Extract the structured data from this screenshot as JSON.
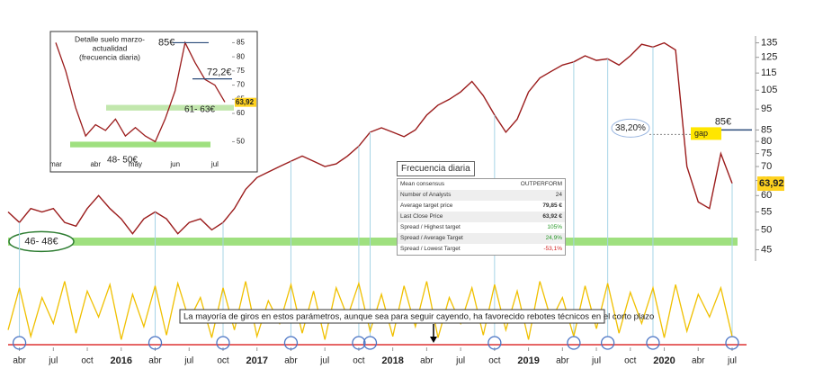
{
  "chart_data": [
    {
      "type": "line",
      "log_scale": true,
      "color": "#9b1c1c",
      "x": [
        "2015-03",
        "2015-04",
        "2015-05",
        "2015-06",
        "2015-07",
        "2015-08",
        "2015-09",
        "2015-10",
        "2015-11",
        "2015-12",
        "2016-01",
        "2016-02",
        "2016-03",
        "2016-04",
        "2016-05",
        "2016-06",
        "2016-07",
        "2016-08",
        "2016-09",
        "2016-10",
        "2016-11",
        "2016-12",
        "2017-01",
        "2017-02",
        "2017-03",
        "2017-04",
        "2017-05",
        "2017-06",
        "2017-07",
        "2017-08",
        "2017-09",
        "2017-10",
        "2017-11",
        "2017-12",
        "2018-01",
        "2018-02",
        "2018-03",
        "2018-04",
        "2018-05",
        "2018-06",
        "2018-07",
        "2018-08",
        "2018-09",
        "2018-10",
        "2018-11",
        "2018-12",
        "2019-01",
        "2019-02",
        "2019-03",
        "2019-04",
        "2019-05",
        "2019-06",
        "2019-07",
        "2019-08",
        "2019-09",
        "2019-10",
        "2019-11",
        "2019-12",
        "2020-01",
        "2020-02",
        "2020-03",
        "2020-04",
        "2020-05",
        "2020-06",
        "2020-07"
      ],
      "values": [
        55,
        52,
        56,
        55,
        56,
        52,
        51,
        56,
        60,
        56,
        53,
        49,
        53,
        55,
        53,
        49,
        52,
        53,
        50,
        52,
        56,
        62,
        66,
        68,
        70,
        72,
        74,
        72,
        70,
        71,
        74,
        78,
        84,
        86,
        84,
        82,
        85,
        92,
        97,
        100,
        104,
        110,
        102,
        92,
        84,
        90,
        104,
        112,
        116,
        120,
        122,
        126,
        123,
        124,
        120,
        126,
        134,
        132,
        135,
        130,
        70,
        58,
        56,
        75,
        64
      ],
      "xlim": [
        "2015-03",
        "2020-07"
      ],
      "xticks": [
        {
          "value": "2015-04",
          "label": "abr"
        },
        {
          "value": "2015-07",
          "label": "jul"
        },
        {
          "value": "2015-10",
          "label": "oct"
        },
        {
          "value": "2016-01",
          "label": "2016"
        },
        {
          "value": "2016-04",
          "label": "abr"
        },
        {
          "value": "2016-07",
          "label": "jul"
        },
        {
          "value": "2016-10",
          "label": "oct"
        },
        {
          "value": "2017-01",
          "label": "2017"
        },
        {
          "value": "2017-04",
          "label": "abr"
        },
        {
          "value": "2017-07",
          "label": "jul"
        },
        {
          "value": "2017-10",
          "label": "oct"
        },
        {
          "value": "2018-01",
          "label": "2018"
        },
        {
          "value": "2018-04",
          "label": "abr"
        },
        {
          "value": "2018-07",
          "label": "jul"
        },
        {
          "value": "2018-10",
          "label": "oct"
        },
        {
          "value": "2019-01",
          "label": "2019"
        },
        {
          "value": "2019-04",
          "label": "abr"
        },
        {
          "value": "2019-07",
          "label": "jul"
        },
        {
          "value": "2019-10",
          "label": "oct"
        },
        {
          "value": "2020-01",
          "label": "2020"
        },
        {
          "value": "2020-04",
          "label": "abr"
        },
        {
          "value": "2020-07",
          "label": "jul"
        }
      ],
      "ylim": [
        43,
        140
      ],
      "yticks": [
        45,
        50,
        55,
        60,
        65,
        70,
        75,
        80,
        85,
        95,
        105,
        115,
        125,
        135
      ],
      "bands": [
        {
          "from": 46,
          "to": 48,
          "label": "46- 48€",
          "color": "#9fe07f"
        }
      ],
      "levels": [
        {
          "value": 85,
          "label": "85€",
          "color": "#2b4b7a"
        }
      ],
      "notes": [
        "38,20%",
        "gap"
      ],
      "last_price": {
        "value": 63.92,
        "label": "63,92"
      }
    },
    {
      "type": "line",
      "color": "#f0c000",
      "ylim": [
        0,
        100
      ],
      "values": [
        20,
        85,
        10,
        70,
        30,
        95,
        15,
        80,
        40,
        90,
        5,
        75,
        25,
        88,
        12,
        92,
        35,
        70,
        8,
        85,
        20,
        95,
        10,
        65,
        30,
        90,
        15,
        80,
        5,
        85,
        40,
        92,
        18,
        75,
        10,
        88,
        25,
        95,
        8,
        70,
        30,
        85,
        12,
        90,
        20,
        80,
        5,
        95,
        35,
        70,
        10,
        88,
        22,
        92,
        15,
        78,
        30,
        85,
        8,
        90,
        18,
        75,
        40,
        85,
        10
      ],
      "markers": [
        "2015-04",
        "2016-04",
        "2016-10",
        "2017-04",
        "2017-10",
        "2017-11",
        "2018-10",
        "2019-05",
        "2019-08",
        "2019-12",
        "2020-07"
      ],
      "annotation": "La mayoría de giros en estos parámetros, aunque sea para seguir cayendo, ha favorecido rebotes técnicos en el corto plazo"
    },
    {
      "type": "line",
      "color": "#9b1c1c",
      "title": [
        "Detalle suelo marzo-",
        "actualidad",
        "(frecuencia diaria)"
      ],
      "categories": [
        "mar",
        null,
        null,
        null,
        "abr",
        null,
        null,
        null,
        "may",
        null,
        null,
        null,
        "jun",
        null,
        null,
        null,
        "jul",
        null
      ],
      "values": [
        85,
        75,
        62,
        52,
        56,
        54,
        58,
        52,
        55,
        52,
        50,
        58,
        68,
        85,
        78,
        72,
        70,
        64
      ],
      "ylim": [
        46,
        88
      ],
      "yticks": [
        50,
        60,
        65,
        70,
        75,
        80,
        85
      ],
      "bands": [
        {
          "from": 61,
          "to": 63,
          "label": "61- 63€",
          "color": "#8fd36a"
        },
        {
          "from": 48,
          "to": 50,
          "label": "48- 50€",
          "color": "#9fe07f"
        }
      ],
      "levels": [
        {
          "value": 85,
          "label": "85€",
          "color": "#2b4b7a"
        },
        {
          "value": 72.2,
          "label": "72,2€",
          "color": "#2b4b7a"
        }
      ],
      "last_price": {
        "value": 63.92,
        "label": "63,92"
      }
    }
  ],
  "table": {
    "title": "Frecuencia diaria",
    "rows": [
      [
        "Mean consensus",
        "OUTPERFORM"
      ],
      [
        "Number of Analysts",
        "24"
      ],
      [
        "Average target price",
        "79,85 €"
      ],
      [
        "Last Close Price",
        "63,92 €"
      ],
      [
        "Spread / Highest target",
        "105%"
      ],
      [
        "Spread / Average Target",
        "24,9%"
      ],
      [
        "Spread / Lowest Target",
        "-53,1%"
      ]
    ],
    "value_colors": [
      "#333",
      "#333",
      "#333",
      "#333",
      "#2a9a2a",
      "#2a9a2a",
      "#d22222"
    ]
  }
}
